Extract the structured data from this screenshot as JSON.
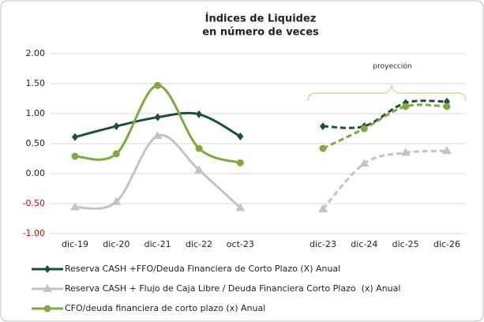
{
  "chart_data": {
    "type": "line",
    "title": [
      "Índices de Liquidez",
      "en número de veces"
    ],
    "annotation": "proyección",
    "categories": [
      "dic-19",
      "dic-20",
      "dic-21",
      "dic-22",
      "oct-23",
      null,
      "dic-23",
      "dic-24",
      "dic-25",
      "dic-26"
    ],
    "series": [
      {
        "name": "Reserva CASH +FFO/Deuda Financiera de Corto Plazo (X) Anual",
        "color": "#1f4e3d",
        "marker": "diamond",
        "values": [
          0.61,
          0.79,
          0.94,
          0.99,
          0.62,
          null,
          0.79,
          0.79,
          1.18,
          1.2
        ]
      },
      {
        "name": "Reserva CASH + Flujo de Caja Libre / Deuda Financiera Corto Plazo  (x) Anual",
        "color": "#c3c3c3",
        "marker": "triangle",
        "values": [
          -0.56,
          -0.47,
          0.63,
          0.06,
          -0.57,
          null,
          -0.59,
          0.17,
          0.35,
          0.38
        ]
      },
      {
        "name": "CFO/deuda financiera de corto plazo (x) Anual",
        "color": "#7fa843",
        "marker": "circle",
        "values": [
          0.29,
          0.33,
          1.47,
          0.42,
          0.18,
          null,
          0.42,
          0.75,
          1.12,
          1.12
        ]
      }
    ],
    "ylim": [
      -1,
      2
    ],
    "yticks": [
      {
        "value": 2,
        "label": "2.00"
      },
      {
        "value": 1.5,
        "label": "1.50"
      },
      {
        "value": 1,
        "label": "1.00"
      },
      {
        "value": 0.5,
        "label": "0.50"
      },
      {
        "value": 0,
        "label": "0.00"
      },
      {
        "value": -0.5,
        "label": "-0.50"
      },
      {
        "value": -1,
        "label": "-1.00"
      }
    ],
    "negative_tick_color": "#e00000",
    "grid": true
  }
}
